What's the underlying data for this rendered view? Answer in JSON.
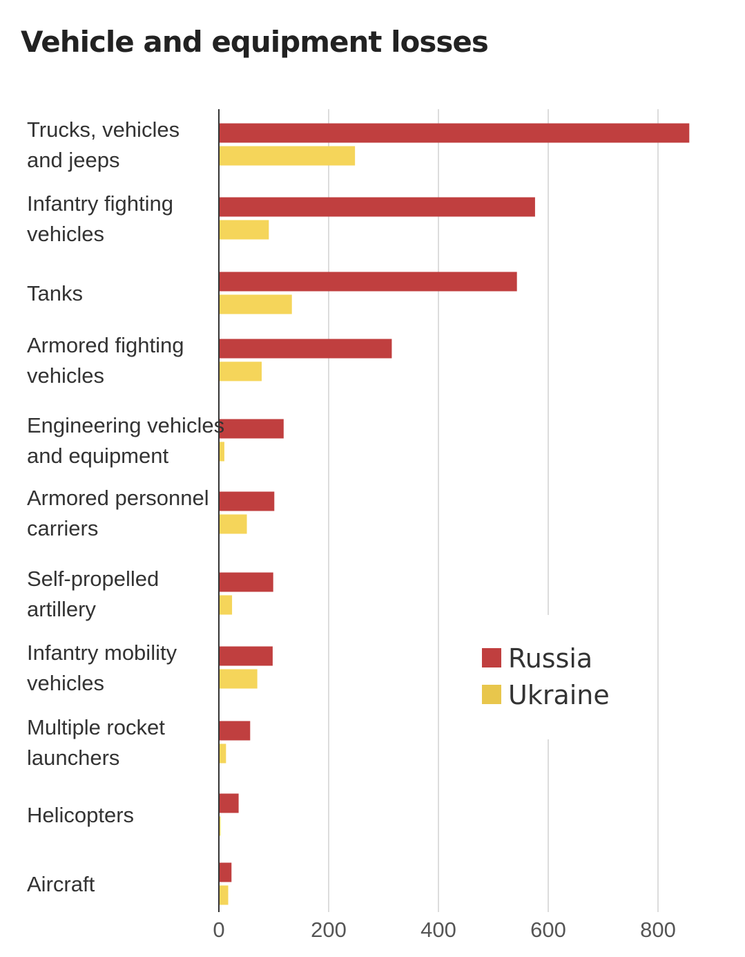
{
  "chart_data": {
    "type": "bar",
    "orientation": "horizontal",
    "title": "Vehicle and equipment losses",
    "categories": [
      [
        "Trucks, vehicles",
        "and jeeps"
      ],
      [
        "Infantry fighting",
        "vehicles"
      ],
      [
        "Tanks"
      ],
      [
        "Armored fighting",
        "vehicles"
      ],
      [
        "Engineering vehicles",
        "and equipment"
      ],
      [
        "Armored personnel",
        "carriers"
      ],
      [
        "Self-propelled",
        "artillery"
      ],
      [
        "Infantry mobility",
        "vehicles"
      ],
      [
        "Multiple rocket",
        "launchers"
      ],
      [
        "Helicopters"
      ],
      [
        "Aircraft"
      ]
    ],
    "series": [
      {
        "name": "Russia",
        "color": "#c03f3f",
        "values": [
          857,
          576,
          543,
          315,
          118,
          101,
          99,
          98,
          57,
          36,
          23
        ]
      },
      {
        "name": "Ukraine",
        "color": "#f5d55a",
        "values": [
          248,
          91,
          133,
          78,
          10,
          51,
          24,
          70,
          13,
          3,
          17
        ]
      }
    ],
    "xlim": [
      0,
      850
    ],
    "xticks": [
      0,
      200,
      400,
      600,
      800
    ],
    "grid": true,
    "legend": {
      "position": "right-middle",
      "swatch_colors": [
        "#c03f3f",
        "#e8c64c"
      ]
    }
  }
}
